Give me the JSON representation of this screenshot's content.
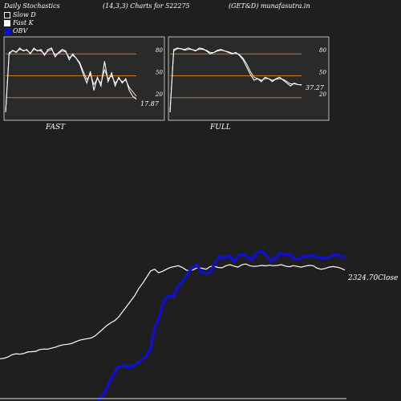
{
  "header": {
    "title": "Daily Stochastics",
    "params": "(14,3,3) Charts for 522275",
    "symbol": "(GET&D) munafasutra.in"
  },
  "legend": [
    {
      "label": "Slow  D",
      "color": "#ffffff",
      "filled": false
    },
    {
      "label": "Fast K",
      "color": "#ffffff",
      "filled": true
    },
    {
      "label": "OBV",
      "color": "#1010d0",
      "filled": true
    }
  ],
  "panels": {
    "fast": {
      "label": "FAST",
      "last_value_label": "17.87"
    },
    "full": {
      "label": "FULL",
      "last_value_label": "37.27"
    }
  },
  "close_label": "2324.70Close",
  "colors": {
    "background": "#1f1f1f",
    "panel_bg": "#2a2a2a",
    "level_line": "#cc7722",
    "obv": "#1010d0",
    "price": "#ffffff"
  },
  "chart_data": [
    {
      "type": "line",
      "name": "fast-stochastics",
      "ylim": [
        0,
        100
      ],
      "levels": [
        20,
        50,
        80
      ],
      "tick_labels": [
        "80",
        "50",
        "20"
      ],
      "series": [
        {
          "values": [
            0,
            80,
            85,
            82,
            88,
            84,
            86,
            80,
            88,
            84,
            86,
            78,
            86,
            88,
            76,
            82,
            86,
            84,
            72,
            80,
            74,
            66,
            52,
            40,
            56,
            30,
            48,
            36,
            70,
            42,
            54,
            36,
            48,
            40,
            46,
            30,
            22,
            17.87
          ]
        },
        {
          "values": [
            0,
            82,
            84,
            83,
            86,
            85,
            85,
            81,
            86,
            85,
            84,
            80,
            84,
            86,
            79,
            81,
            84,
            83,
            75,
            78,
            74,
            68,
            56,
            45,
            52,
            38,
            46,
            40,
            58,
            46,
            50,
            40,
            46,
            42,
            44,
            34,
            28,
            22
          ]
        }
      ]
    },
    {
      "type": "line",
      "name": "full-stochastics",
      "ylim": [
        0,
        100
      ],
      "levels": [
        20,
        50,
        80
      ],
      "tick_labels": [
        "80",
        "50",
        "20"
      ],
      "series": [
        {
          "values": [
            0,
            86,
            88,
            87,
            86,
            88,
            86,
            84,
            88,
            87,
            84,
            80,
            82,
            85,
            86,
            84,
            82,
            80,
            82,
            78,
            72,
            62,
            52,
            44,
            46,
            42,
            48,
            46,
            42,
            46,
            48,
            44,
            40,
            36,
            40,
            38,
            37.27
          ]
        },
        {
          "values": [
            0,
            84,
            87,
            87,
            85,
            86,
            86,
            85,
            86,
            86,
            85,
            82,
            82,
            84,
            85,
            84,
            83,
            81,
            81,
            79,
            74,
            66,
            56,
            48,
            46,
            44,
            46,
            46,
            44,
            45,
            46,
            45,
            42,
            39,
            39,
            38,
            38
          ]
        }
      ]
    },
    {
      "type": "line",
      "name": "price-and-obv",
      "series": [
        {
          "values": [
            1820,
            1822,
            1830,
            1842,
            1848,
            1846,
            1850,
            1858,
            1860,
            1862,
            1872,
            1875,
            1874,
            1880,
            1886,
            1894,
            1900,
            1902,
            1906,
            1916,
            1925,
            1930,
            1934,
            1938,
            1950,
            1970,
            1990,
            2010,
            2025,
            2038,
            2060,
            2090,
            2120,
            2150,
            2180,
            2220,
            2250,
            2285,
            2320,
            2330,
            2310,
            2318,
            2330,
            2340,
            2345,
            2350,
            2340,
            2325,
            2320,
            2330,
            2340,
            2335,
            2330,
            2345,
            2348,
            2340,
            2338,
            2350,
            2356,
            2348,
            2342,
            2355,
            2360,
            2350,
            2346,
            2348,
            2352,
            2349,
            2353,
            2350,
            2352,
            2356,
            2348,
            2344,
            2350,
            2346,
            2342,
            2348,
            2352,
            2350,
            2336,
            2330,
            2334,
            2342,
            2345,
            2342,
            2336,
            2324.7
          ]
        },
        {
          "values": [
            -2000000,
            -1800000,
            -1500000,
            -1000000,
            -200000,
            600000,
            1200000,
            1350000,
            1250000,
            1300000,
            1500000,
            1800000,
            2100000,
            2700000,
            4500000,
            5500000,
            6800000,
            7200000,
            7100000,
            8000000,
            8400000,
            9000000,
            9500000,
            9800000,
            9200000,
            9050000,
            9150000,
            9900000,
            10500000,
            10300000,
            10600000,
            10050000,
            10550000,
            10650000,
            10400000,
            10200000,
            10800000,
            10900000,
            10600000,
            10100000,
            10300000,
            10800000,
            10600000,
            10700000,
            10300000,
            10250000,
            10500000,
            10450000,
            10600000,
            10400000,
            10350000,
            10300000,
            10500000,
            10650000,
            10500000,
            10400000
          ]
        }
      ]
    }
  ]
}
